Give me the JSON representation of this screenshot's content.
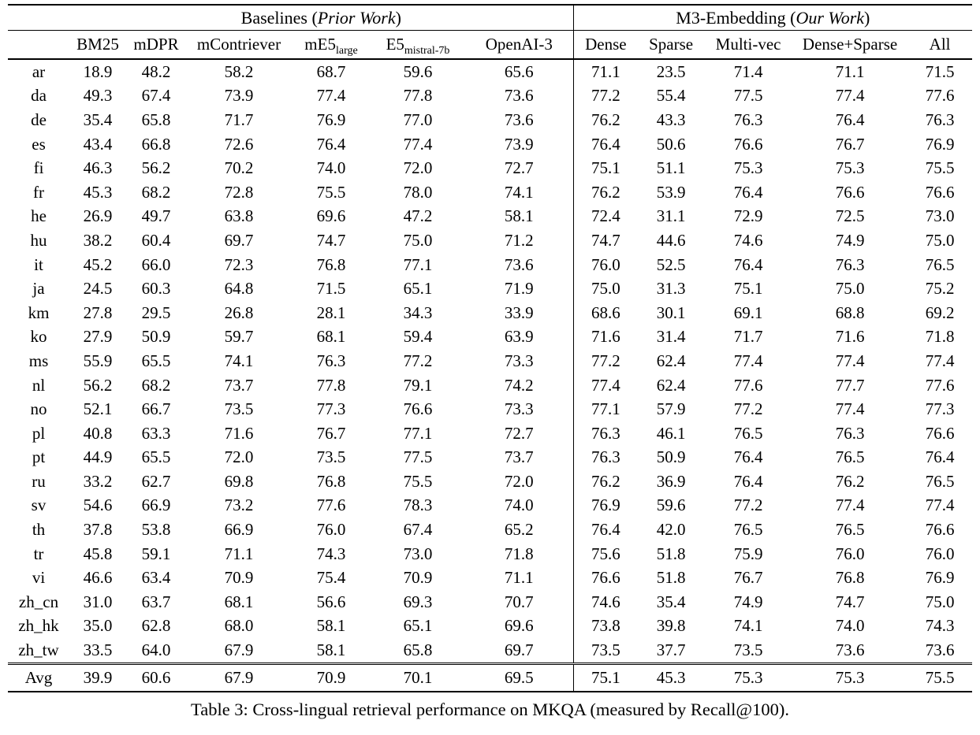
{
  "colors": {
    "text": "#000000",
    "background": "#ffffff",
    "rule": "#000000"
  },
  "table": {
    "groups": [
      {
        "prefix": "Baselines (",
        "italic": "Prior Work",
        "suffix": ")"
      },
      {
        "prefix": "M3-Embedding (",
        "italic": "Our Work",
        "suffix": ")"
      }
    ],
    "columns": [
      {
        "label": "BM25"
      },
      {
        "label": "mDPR"
      },
      {
        "label": "mContriever"
      },
      {
        "label": "mE5",
        "sub": "large"
      },
      {
        "label": "E5",
        "sub": "mistral-7b"
      },
      {
        "label": "OpenAI-3"
      },
      {
        "label": "Dense"
      },
      {
        "label": "Sparse"
      },
      {
        "label": "Multi-vec"
      },
      {
        "label": "Dense+Sparse"
      },
      {
        "label": "All"
      }
    ],
    "rows": [
      {
        "lang": "ar",
        "values": [
          "18.9",
          "48.2",
          "58.2",
          "68.7",
          "59.6",
          "65.6",
          "71.1",
          "23.5",
          "71.4",
          "71.1",
          "71.5"
        ],
        "bold": [
          10
        ]
      },
      {
        "lang": "da",
        "values": [
          "49.3",
          "67.4",
          "73.9",
          "77.4",
          "77.8",
          "73.6",
          "77.2",
          "55.4",
          "77.5",
          "77.4",
          "77.6"
        ],
        "bold": [
          4
        ]
      },
      {
        "lang": "de",
        "values": [
          "35.4",
          "65.8",
          "71.7",
          "76.9",
          "77.0",
          "73.6",
          "76.2",
          "43.3",
          "76.3",
          "76.4",
          "76.3"
        ],
        "bold": [
          4
        ]
      },
      {
        "lang": "es",
        "values": [
          "43.4",
          "66.8",
          "72.6",
          "76.4",
          "77.4",
          "73.9",
          "76.4",
          "50.6",
          "76.6",
          "76.7",
          "76.9"
        ],
        "bold": [
          4
        ]
      },
      {
        "lang": "fi",
        "values": [
          "46.3",
          "56.2",
          "70.2",
          "74.0",
          "72.0",
          "72.7",
          "75.1",
          "51.1",
          "75.3",
          "75.3",
          "75.5"
        ],
        "bold": [
          10
        ]
      },
      {
        "lang": "fr",
        "values": [
          "45.3",
          "68.2",
          "72.8",
          "75.5",
          "78.0",
          "74.1",
          "76.2",
          "53.9",
          "76.4",
          "76.6",
          "76.6"
        ],
        "bold": [
          4
        ]
      },
      {
        "lang": "he",
        "values": [
          "26.9",
          "49.7",
          "63.8",
          "69.6",
          "47.2",
          "58.1",
          "72.4",
          "31.1",
          "72.9",
          "72.5",
          "73.0"
        ],
        "bold": [
          10
        ]
      },
      {
        "lang": "hu",
        "values": [
          "38.2",
          "60.4",
          "69.7",
          "74.7",
          "75.0",
          "71.2",
          "74.7",
          "44.6",
          "74.6",
          "74.9",
          "75.0"
        ],
        "bold": [
          4,
          10
        ]
      },
      {
        "lang": "it",
        "values": [
          "45.2",
          "66.0",
          "72.3",
          "76.8",
          "77.1",
          "73.6",
          "76.0",
          "52.5",
          "76.4",
          "76.3",
          "76.5"
        ],
        "bold": [
          4
        ]
      },
      {
        "lang": "ja",
        "values": [
          "24.5",
          "60.3",
          "64.8",
          "71.5",
          "65.1",
          "71.9",
          "75.0",
          "31.3",
          "75.1",
          "75.0",
          "75.2"
        ],
        "bold": [
          10
        ]
      },
      {
        "lang": "km",
        "values": [
          "27.8",
          "29.5",
          "26.8",
          "28.1",
          "34.3",
          "33.9",
          "68.6",
          "30.1",
          "69.1",
          "68.8",
          "69.2"
        ],
        "bold": [
          10
        ]
      },
      {
        "lang": "ko",
        "values": [
          "27.9",
          "50.9",
          "59.7",
          "68.1",
          "59.4",
          "63.9",
          "71.6",
          "31.4",
          "71.7",
          "71.6",
          "71.8"
        ],
        "bold": [
          10
        ]
      },
      {
        "lang": "ms",
        "values": [
          "55.9",
          "65.5",
          "74.1",
          "76.3",
          "77.2",
          "73.3",
          "77.2",
          "62.4",
          "77.4",
          "77.4",
          "77.4"
        ],
        "bold": [
          8,
          9,
          10
        ]
      },
      {
        "lang": "nl",
        "values": [
          "56.2",
          "68.2",
          "73.7",
          "77.8",
          "79.1",
          "74.2",
          "77.4",
          "62.4",
          "77.6",
          "77.7",
          "77.6"
        ],
        "bold": [
          4
        ]
      },
      {
        "lang": "no",
        "values": [
          "52.1",
          "66.7",
          "73.5",
          "77.3",
          "76.6",
          "73.3",
          "77.1",
          "57.9",
          "77.2",
          "77.4",
          "77.3"
        ],
        "bold": [
          9
        ]
      },
      {
        "lang": "pl",
        "values": [
          "40.8",
          "63.3",
          "71.6",
          "76.7",
          "77.1",
          "72.7",
          "76.3",
          "46.1",
          "76.5",
          "76.3",
          "76.6"
        ],
        "bold": [
          4
        ]
      },
      {
        "lang": "pt",
        "values": [
          "44.9",
          "65.5",
          "72.0",
          "73.5",
          "77.5",
          "73.7",
          "76.3",
          "50.9",
          "76.4",
          "76.5",
          "76.4"
        ],
        "bold": [
          4
        ]
      },
      {
        "lang": "ru",
        "values": [
          "33.2",
          "62.7",
          "69.8",
          "76.8",
          "75.5",
          "72.0",
          "76.2",
          "36.9",
          "76.4",
          "76.2",
          "76.5"
        ],
        "bold": [
          3
        ]
      },
      {
        "lang": "sv",
        "values": [
          "54.6",
          "66.9",
          "73.2",
          "77.6",
          "78.3",
          "74.0",
          "76.9",
          "59.6",
          "77.2",
          "77.4",
          "77.4"
        ],
        "bold": [
          4
        ]
      },
      {
        "lang": "th",
        "values": [
          "37.8",
          "53.8",
          "66.9",
          "76.0",
          "67.4",
          "65.2",
          "76.4",
          "42.0",
          "76.5",
          "76.5",
          "76.6"
        ],
        "bold": [
          10
        ]
      },
      {
        "lang": "tr",
        "values": [
          "45.8",
          "59.1",
          "71.1",
          "74.3",
          "73.0",
          "71.8",
          "75.6",
          "51.8",
          "75.9",
          "76.0",
          "76.0"
        ],
        "bold": [
          9,
          10
        ]
      },
      {
        "lang": "vi",
        "values": [
          "46.6",
          "63.4",
          "70.9",
          "75.4",
          "70.9",
          "71.1",
          "76.6",
          "51.8",
          "76.7",
          "76.8",
          "76.9"
        ],
        "bold": [
          10
        ]
      },
      {
        "lang": "zh_cn",
        "values": [
          "31.0",
          "63.7",
          "68.1",
          "56.6",
          "69.3",
          "70.7",
          "74.6",
          "35.4",
          "74.9",
          "74.7",
          "75.0"
        ],
        "bold": [
          10
        ]
      },
      {
        "lang": "zh_hk",
        "values": [
          "35.0",
          "62.8",
          "68.0",
          "58.1",
          "65.1",
          "69.6",
          "73.8",
          "39.8",
          "74.1",
          "74.0",
          "74.3"
        ],
        "bold": [
          10
        ]
      },
      {
        "lang": "zh_tw",
        "values": [
          "33.5",
          "64.0",
          "67.9",
          "58.1",
          "65.8",
          "69.7",
          "73.5",
          "37.7",
          "73.5",
          "73.6",
          "73.6"
        ],
        "bold": [
          9,
          10
        ]
      }
    ],
    "avg": {
      "lang": "Avg",
      "values": [
        "39.9",
        "60.6",
        "67.9",
        "70.9",
        "70.1",
        "69.5",
        "75.1",
        "45.3",
        "75.3",
        "75.3",
        "75.5"
      ],
      "bold": [
        10
      ]
    }
  },
  "caption": "Table 3: Cross-lingual retrieval performance on MKQA (measured by Recall@100)."
}
